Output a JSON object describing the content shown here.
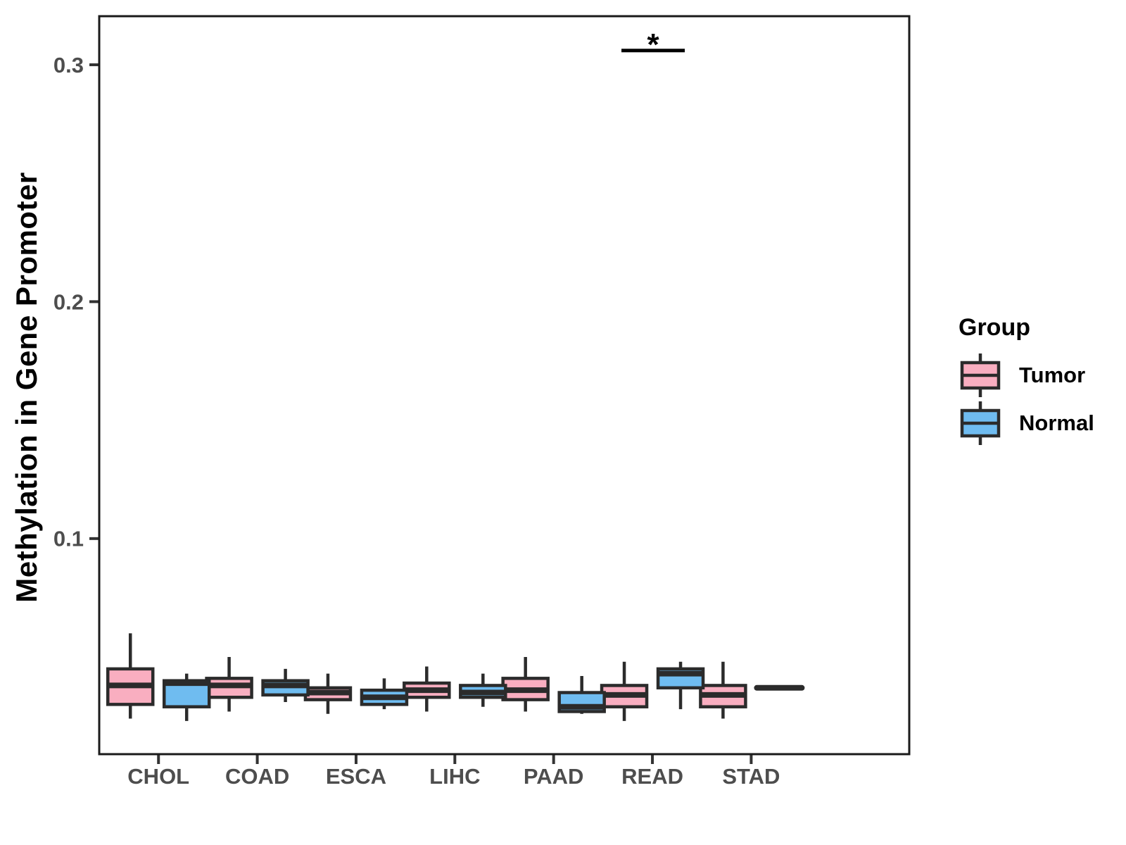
{
  "figure": {
    "background": "#ffffff"
  },
  "legend": {
    "title": "Group",
    "items": [
      {
        "label": "Tumor",
        "color": "#F9AEC0"
      },
      {
        "label": "Normal",
        "color": "#6FBCF0"
      }
    ]
  },
  "chart_data": {
    "type": "boxplot",
    "title": "",
    "xlabel": "",
    "ylabel": "Methylation in Gene Promoter",
    "categories": [
      "CHOL",
      "COAD",
      "ESCA",
      "LIHC",
      "PAAD",
      "READ",
      "STAD"
    ],
    "ylim": [
      0.009,
      0.3205
    ],
    "yticks": {
      "values": [
        0.1,
        0.2,
        0.3
      ],
      "labels": [
        "0.1",
        "0.2",
        "0.3"
      ]
    },
    "grid": false,
    "legend_position": "right",
    "series": [
      {
        "name": "Tumor",
        "color": "#F9AEC0",
        "boxes": [
          {
            "category": "CHOL",
            "low": 0.024,
            "q1": 0.03,
            "median": 0.038,
            "q3": 0.045,
            "high": 0.06
          },
          {
            "category": "COAD",
            "low": 0.027,
            "q1": 0.033,
            "median": 0.038,
            "q3": 0.041,
            "high": 0.05
          },
          {
            "category": "ESCA",
            "low": 0.026,
            "q1": 0.032,
            "median": 0.035,
            "q3": 0.037,
            "high": 0.043
          },
          {
            "category": "LIHC",
            "low": 0.027,
            "q1": 0.033,
            "median": 0.036,
            "q3": 0.039,
            "high": 0.046
          },
          {
            "category": "PAAD",
            "low": 0.027,
            "q1": 0.032,
            "median": 0.036,
            "q3": 0.041,
            "high": 0.05
          },
          {
            "category": "READ",
            "low": 0.023,
            "q1": 0.029,
            "median": 0.034,
            "q3": 0.038,
            "high": 0.048
          },
          {
            "category": "STAD",
            "low": 0.024,
            "q1": 0.029,
            "median": 0.034,
            "q3": 0.038,
            "high": 0.048
          }
        ]
      },
      {
        "name": "Normal",
        "color": "#6FBCF0",
        "boxes": [
          {
            "category": "CHOL",
            "low": 0.023,
            "q1": 0.029,
            "median": 0.039,
            "q3": 0.04,
            "high": 0.043
          },
          {
            "category": "COAD",
            "low": 0.031,
            "q1": 0.034,
            "median": 0.038,
            "q3": 0.04,
            "high": 0.045
          },
          {
            "category": "ESCA",
            "low": 0.028,
            "q1": 0.03,
            "median": 0.033,
            "q3": 0.036,
            "high": 0.041
          },
          {
            "category": "LIHC",
            "low": 0.029,
            "q1": 0.033,
            "median": 0.035,
            "q3": 0.038,
            "high": 0.043
          },
          {
            "category": "PAAD",
            "low": 0.026,
            "q1": 0.027,
            "median": 0.029,
            "q3": 0.035,
            "high": 0.042
          },
          {
            "category": "READ",
            "low": 0.028,
            "q1": 0.037,
            "median": 0.043,
            "q3": 0.045,
            "high": 0.048
          },
          {
            "category": "STAD",
            "low": 0.037,
            "q1": 0.037,
            "median": 0.037,
            "q3": 0.037,
            "high": 0.037
          }
        ]
      }
    ],
    "annotations": [
      {
        "label": "*",
        "category": "READ",
        "y": 0.306,
        "spans": [
          "Tumor",
          "Normal"
        ]
      }
    ],
    "styles": {
      "box_stroke": "#2b2b2b",
      "panel_border": "#1a1a1a",
      "tick_color": "#333333",
      "tick_label_color": "#4d4d4d",
      "axis_title_color": "#000000",
      "annotation_color": "#000000"
    }
  }
}
